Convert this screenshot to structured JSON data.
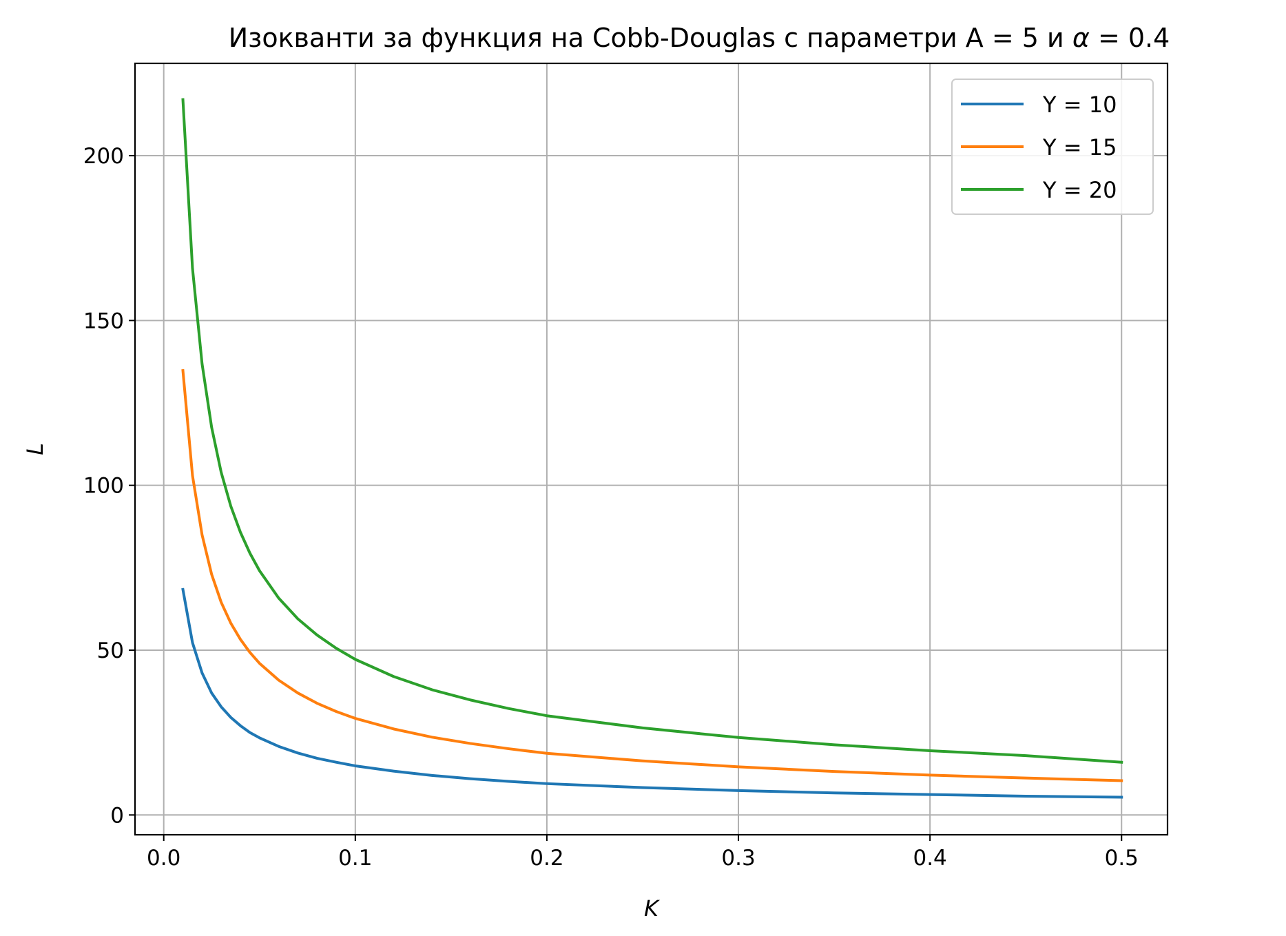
{
  "chart_data": {
    "type": "line",
    "title_prefix": "Изокванти за функция на Cobb-Douglas с параметри A = 5 и ",
    "title_alpha": "α",
    "title_suffix": " = 0.4",
    "xlabel": "K",
    "ylabel": "L",
    "xlim": [
      -0.015,
      0.524
    ],
    "ylim": [
      -6,
      228
    ],
    "xticks": [
      0.0,
      0.1,
      0.2,
      0.3,
      0.4,
      0.5
    ],
    "xtick_labels": [
      "0.0",
      "0.1",
      "0.2",
      "0.3",
      "0.4",
      "0.5"
    ],
    "yticks": [
      0,
      50,
      100,
      150,
      200
    ],
    "ytick_labels": [
      "0",
      "50",
      "100",
      "150",
      "200"
    ],
    "grid": true,
    "legend_position": "top-right",
    "params": {
      "A": 5,
      "alpha": 0.4
    },
    "x": [
      0.01,
      0.015,
      0.02,
      0.025,
      0.03,
      0.035,
      0.04,
      0.045,
      0.05,
      0.06,
      0.07,
      0.08,
      0.09,
      0.1,
      0.12,
      0.14,
      0.16,
      0.18,
      0.2,
      0.25,
      0.3,
      0.35,
      0.4,
      0.45,
      0.5
    ],
    "series": [
      {
        "name": "Y = 10",
        "color": "#1f77b4",
        "values": [
          68.4,
          52.3,
          43.1,
          37.0,
          32.8,
          29.6,
          27.1,
          25.0,
          23.4,
          20.8,
          18.8,
          17.2,
          16.0,
          14.9,
          13.3,
          12.0,
          11.0,
          10.2,
          9.5,
          8.3,
          7.4,
          6.7,
          6.2,
          5.7,
          5.4
        ]
      },
      {
        "name": "Y = 15",
        "color": "#ff7f0e",
        "values": [
          134.8,
          103.0,
          85.0,
          73.0,
          64.5,
          58.2,
          53.3,
          49.3,
          46.0,
          40.9,
          37.0,
          33.9,
          31.4,
          29.3,
          26.1,
          23.6,
          21.7,
          20.1,
          18.7,
          16.4,
          14.6,
          13.2,
          12.1,
          11.2,
          10.4
        ]
      },
      {
        "name": "Y = 20",
        "color": "#2ca02c",
        "values": [
          217.0,
          165.9,
          136.9,
          117.6,
          103.9,
          93.7,
          85.8,
          79.4,
          74.1,
          65.8,
          59.5,
          54.6,
          50.6,
          47.2,
          42.0,
          38.0,
          34.9,
          32.3,
          30.1,
          26.4,
          23.5,
          21.3,
          19.5,
          18.0,
          16.0
        ]
      }
    ]
  }
}
